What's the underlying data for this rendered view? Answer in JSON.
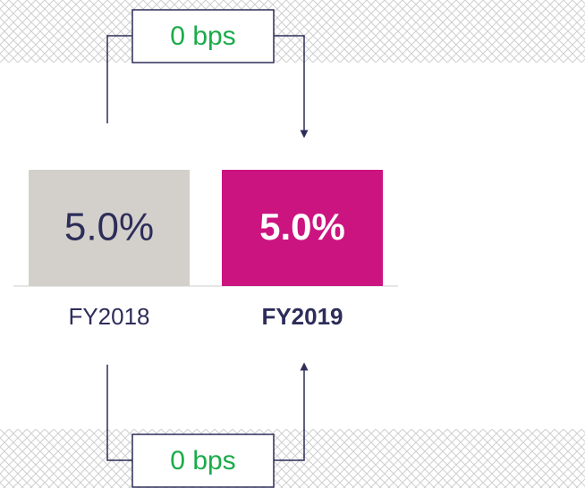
{
  "chart_data": {
    "type": "bar",
    "categories": [
      "FY2018",
      "FY2019"
    ],
    "values": [
      5.0,
      5.0
    ],
    "value_labels": [
      "5.0%",
      "5.0%"
    ],
    "colors": [
      "#d3d0cb",
      "#cc1480"
    ],
    "annotations": [
      "0 bps",
      "0 bps"
    ]
  }
}
